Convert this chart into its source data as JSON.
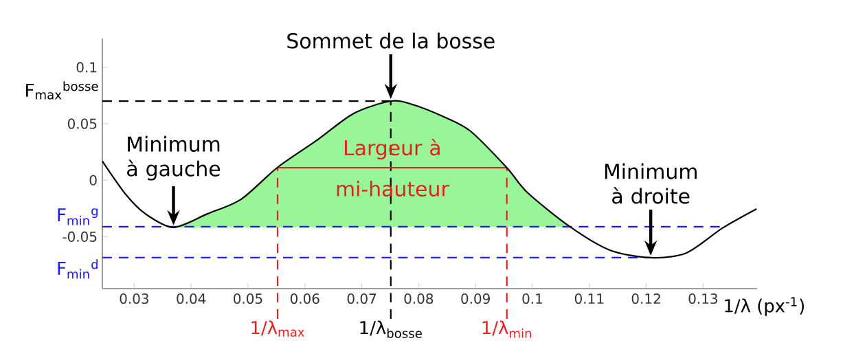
{
  "chart_data": {
    "type": "line",
    "xlabel": "1/λ (px$^{-1}$)",
    "x": [
      0.0244,
      0.0285,
      0.032,
      0.0369,
      0.0428,
      0.0488,
      0.0552,
      0.0621,
      0.0686,
      0.0751,
      0.0789,
      0.0845,
      0.0891,
      0.0955,
      0.0991,
      0.1066,
      0.1136,
      0.1208,
      0.1271,
      0.1334,
      0.1394
    ],
    "series": [
      {
        "color": "#000000",
        "values": [
          0.0168,
          -0.0125,
          -0.0299,
          -0.0418,
          -0.0299,
          -0.0168,
          0.0114,
          0.0353,
          0.0592,
          0.0701,
          0.0671,
          0.056,
          0.0435,
          0.0111,
          -0.0108,
          -0.0412,
          -0.0619,
          -0.0686,
          -0.0643,
          -0.0424,
          -0.0254
        ]
      },
      {
        "type": "area",
        "color": "#98f598",
        "x": [
          0.0369,
          0.0428,
          0.0488,
          0.0552,
          0.0621,
          0.0686,
          0.0751,
          0.0789,
          0.0845,
          0.0891,
          0.0955,
          0.0991,
          0.1066
        ],
        "values": [
          -0.0418,
          -0.0299,
          -0.0168,
          0.0114,
          0.0353,
          0.0592,
          0.0701,
          0.0671,
          0.056,
          0.0435,
          0.0111,
          -0.0108,
          -0.0412
        ]
      }
    ],
    "xlim": [
      0.0244,
      0.1395
    ],
    "ylim": [
      -0.096,
      0.1255
    ],
    "xticks": [
      0.03,
      0.04,
      0.05,
      0.06,
      0.07,
      0.08,
      0.09,
      0.1,
      0.11,
      0.12,
      0.13
    ],
    "yticks": [
      -0.05,
      0,
      0.05,
      0.1
    ],
    "ref_lines": [
      {
        "axis": "y",
        "value": 0.0701,
        "label": "F$_{max}$$^{bosse}$",
        "color": "#000000",
        "line_style": "dashed"
      },
      {
        "axis": "x",
        "value": 0.0751,
        "label": "1/λ$_{bosse}$",
        "color": "#000000",
        "line_style": "dashed"
      },
      {
        "axis": "y",
        "value": -0.0412,
        "label": "F$_{min}$$^{g}$",
        "color": "#1a1aff",
        "line_style": "dashed"
      },
      {
        "axis": "y",
        "value": -0.0686,
        "label": "F$_{min}$$^{d}$",
        "color": "#1a1aff",
        "line_style": "dashed"
      },
      {
        "axis": "x",
        "value": 0.0552,
        "label": "1/λ$_{max}$",
        "color": "#e8201c",
        "line_style": "dashed"
      },
      {
        "axis": "x",
        "value": 0.0955,
        "label": "1/λ$_{min}$",
        "color": "#e8201c",
        "line_style": "dashed"
      },
      {
        "axis": "y",
        "value": 0.0111,
        "label": "Largeur à mi-hauteur",
        "color": "#e8201c",
        "line_style": "solid"
      }
    ],
    "annotations": [
      {
        "text": "Sommet de la bosse",
        "x": 0.0751,
        "y": 0.0701
      },
      {
        "text": "Minimum à gauche",
        "x": 0.0369,
        "y": -0.0418
      },
      {
        "text": "Minimum à droite",
        "x": 0.1208,
        "y": -0.0686
      }
    ]
  }
}
